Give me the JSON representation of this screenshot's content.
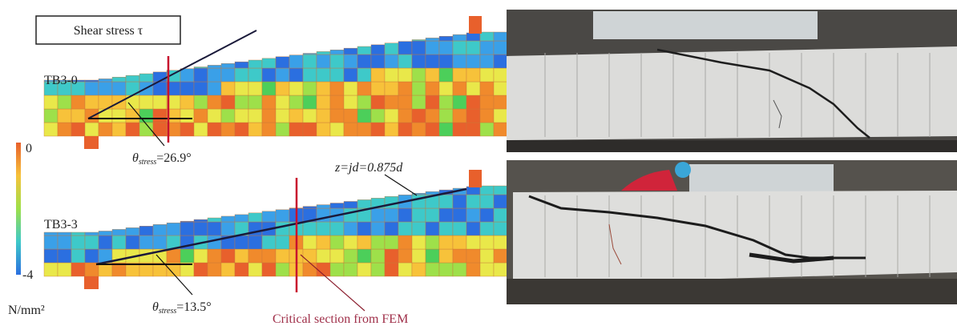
{
  "figure": {
    "legend_title": "Shear stress τ",
    "colorbar": {
      "max_label": "0",
      "min_label": "-4",
      "unit": "N/mm²"
    },
    "panels": [
      {
        "label": "TB3-0",
        "angle": {
          "symbol": "θ",
          "subscript": "stress",
          "text": "=26.9°"
        }
      },
      {
        "label": "TB3-3",
        "angle": {
          "symbol": "θ",
          "subscript": "stress",
          "text": "=13.5°"
        },
        "lever_arm": "z=jd=0.875d",
        "critical_section": "Critical section from FEM"
      }
    ]
  }
}
